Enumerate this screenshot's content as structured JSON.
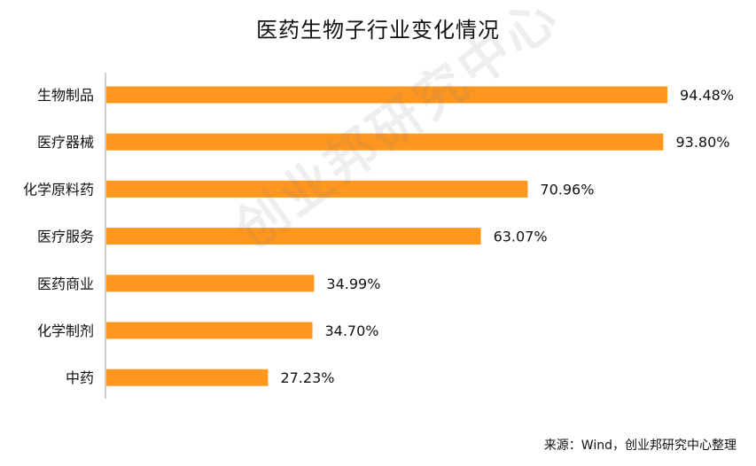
{
  "chart_data": {
    "type": "bar",
    "orientation": "horizontal",
    "title": "医药生物子行业变化情况",
    "categories": [
      "生物制品",
      "医疗器械",
      "化学原料药",
      "医疗服务",
      "医药商业",
      "化学制剂",
      "中药"
    ],
    "values": [
      94.48,
      93.8,
      70.96,
      63.07,
      34.99,
      34.7,
      27.23
    ],
    "value_labels": [
      "94.48%",
      "93.80%",
      "70.96%",
      "63.07%",
      "34.99%",
      "34.70%",
      "27.23%"
    ],
    "xlim": [
      0,
      100
    ],
    "grid": false,
    "legend": "none",
    "bar_color": "#FF961E",
    "source": "来源：Wind，创业邦研究中心整理",
    "watermark": "创业邦研究中心"
  }
}
